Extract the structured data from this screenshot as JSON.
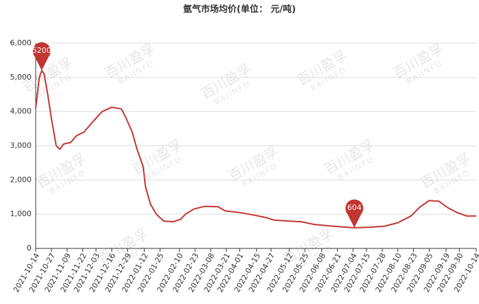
{
  "chart_data": {
    "type": "line",
    "title": "氩气市场均价(单位： 元/吨)",
    "watermark": [
      "百川盈孚",
      "BAIINFO"
    ],
    "x": [
      "2021-10-14",
      "2021-10-17",
      "2021-10-19",
      "2021-10-21",
      "2021-10-24",
      "2021-10-27",
      "2021-10-31",
      "2021-11-03",
      "2021-11-06",
      "2021-11-12",
      "2021-11-17",
      "2021-11-23",
      "2021-11-29",
      "2021-12-08",
      "2021-12-16",
      "2021-12-24",
      "2021-12-28",
      "2022-01-02",
      "2022-01-06",
      "2022-01-11",
      "2022-01-13",
      "2022-01-17",
      "2022-01-22",
      "2022-01-28",
      "2022-02-05",
      "2022-02-11",
      "2022-02-15",
      "2022-02-22",
      "2022-03-03",
      "2022-03-14",
      "2022-03-20",
      "2022-04-01",
      "2022-04-12",
      "2022-04-23",
      "2022-04-29",
      "2022-05-11",
      "2022-05-22",
      "2022-06-02",
      "2022-06-14",
      "2022-06-28",
      "2022-07-05",
      "2022-07-18",
      "2022-07-30",
      "2022-08-10",
      "2022-08-21",
      "2022-08-28",
      "2022-09-05",
      "2022-09-13",
      "2022-09-20",
      "2022-09-28",
      "2022-10-06",
      "2022-10-14"
    ],
    "series": [
      {
        "name": "氩气",
        "color": "#c23531",
        "values": [
          4100,
          5000,
          5200,
          5100,
          4500,
          3800,
          3000,
          2900,
          3050,
          3100,
          3300,
          3400,
          3650,
          4000,
          4130,
          4080,
          3800,
          3400,
          2900,
          2400,
          1800,
          1300,
          1000,
          800,
          780,
          850,
          1000,
          1150,
          1230,
          1220,
          1100,
          1050,
          980,
          900,
          830,
          800,
          780,
          700,
          660,
          620,
          604,
          620,
          650,
          750,
          950,
          1200,
          1400,
          1380,
          1200,
          1050,
          950,
          950
        ]
      }
    ],
    "mark_point": [
      "max",
      "min"
    ],
    "xlim": [
      "2021-10-14",
      "2022-10-14"
    ],
    "xticks": [
      "2021-10-14",
      "2021-10-27",
      "2021-11-09",
      "2021-11-22",
      "2021-12-03",
      "2021-12-16",
      "2021-12-29",
      "2022-01-12",
      "2022-01-25",
      "2022-02-10",
      "2022-02-23",
      "2022-03-08",
      "2022-03-21",
      "2022-04-01",
      "2022-04-15",
      "2022-04-27",
      "2022-05-12",
      "2022-05-25",
      "2022-06-08",
      "2022-06-21",
      "2022-07-04",
      "2022-07-15",
      "2022-07-28",
      "2022-08-10",
      "2022-08-23",
      "2022-09-05",
      "2022-09-19",
      "2022-09-30",
      "2022-10-14"
    ],
    "ylim": [
      0,
      6000
    ],
    "yticks": [
      0,
      {
        "value": 1000,
        "label": "1,000"
      },
      {
        "value": 2000,
        "label": "2,000"
      },
      {
        "value": 3000,
        "label": "3,000"
      },
      {
        "value": 4000,
        "label": "4,000"
      },
      {
        "value": 5000,
        "label": "5,000"
      },
      {
        "value": 6000,
        "label": "6,000"
      }
    ],
    "grid": true
  }
}
